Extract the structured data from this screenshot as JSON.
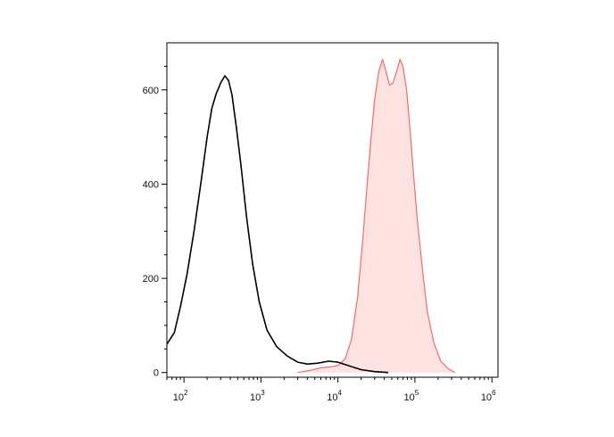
{
  "chart_data": {
    "type": "area",
    "title": "",
    "xlabel": "",
    "ylabel": "",
    "x_scale": "log",
    "xlim": [
      60,
      1200000
    ],
    "ylim": [
      -10,
      700
    ],
    "grid": false,
    "legend": "none",
    "x_ticks": [
      {
        "value": 100,
        "base": "10",
        "exp": "2"
      },
      {
        "value": 1000,
        "base": "10",
        "exp": "3"
      },
      {
        "value": 10000,
        "base": "10",
        "exp": "4"
      },
      {
        "value": 100000,
        "base": "10",
        "exp": "5"
      },
      {
        "value": 1000000,
        "base": "10",
        "exp": "6"
      }
    ],
    "y_ticks": [
      {
        "value": 0,
        "label": "0"
      },
      {
        "value": 200,
        "label": "200"
      },
      {
        "value": 400,
        "label": "400"
      },
      {
        "value": 600,
        "label": "600"
      }
    ],
    "series": [
      {
        "style": "outline",
        "color": "#000000",
        "points": [
          [
            60,
            60
          ],
          [
            75,
            85
          ],
          [
            90,
            140
          ],
          [
            110,
            210
          ],
          [
            135,
            300
          ],
          [
            165,
            400
          ],
          [
            200,
            500
          ],
          [
            230,
            560
          ],
          [
            260,
            590
          ],
          [
            300,
            615
          ],
          [
            340,
            630
          ],
          [
            380,
            620
          ],
          [
            420,
            590
          ],
          [
            480,
            520
          ],
          [
            550,
            440
          ],
          [
            650,
            330
          ],
          [
            780,
            230
          ],
          [
            950,
            150
          ],
          [
            1200,
            90
          ],
          [
            1600,
            55
          ],
          [
            2200,
            35
          ],
          [
            3000,
            22
          ],
          [
            4000,
            18
          ],
          [
            5500,
            20
          ],
          [
            7500,
            24
          ],
          [
            10000,
            22
          ],
          [
            14000,
            14
          ],
          [
            20000,
            6
          ],
          [
            30000,
            2
          ],
          [
            45000,
            0
          ]
        ]
      },
      {
        "style": "filled",
        "color": "#f06a6a",
        "fill": "#fde2e2",
        "points": [
          [
            3000,
            0
          ],
          [
            4500,
            5
          ],
          [
            6000,
            10
          ],
          [
            8000,
            12
          ],
          [
            10000,
            15
          ],
          [
            12500,
            30
          ],
          [
            15000,
            70
          ],
          [
            18000,
            160
          ],
          [
            21000,
            280
          ],
          [
            24000,
            400
          ],
          [
            27000,
            500
          ],
          [
            30000,
            580
          ],
          [
            34000,
            640
          ],
          [
            38000,
            665
          ],
          [
            42000,
            640
          ],
          [
            47000,
            610
          ],
          [
            52000,
            615
          ],
          [
            58000,
            640
          ],
          [
            64000,
            665
          ],
          [
            70000,
            650
          ],
          [
            78000,
            600
          ],
          [
            86000,
            520
          ],
          [
            96000,
            420
          ],
          [
            108000,
            320
          ],
          [
            125000,
            220
          ],
          [
            145000,
            130
          ],
          [
            175000,
            65
          ],
          [
            215000,
            25
          ],
          [
            270000,
            8
          ],
          [
            330000,
            0
          ]
        ]
      }
    ]
  }
}
